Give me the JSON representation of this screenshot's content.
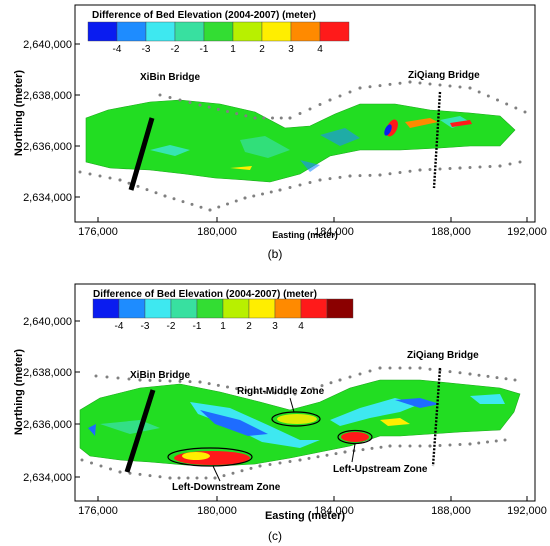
{
  "panels": [
    {
      "id": "b",
      "caption": "(b)",
      "legend_title": "Difference of Bed Elevation (2004-2007) (meter)",
      "legend_ticks": [
        "-4",
        "-3",
        "-2",
        "-1",
        "1",
        "2",
        "3",
        "4"
      ],
      "legend_colors": [
        "#0a1cf0",
        "#1e8cff",
        "#3ee8f0",
        "#38e0a0",
        "#33dd33",
        "#b8f000",
        "#ffee00",
        "#ff8a00",
        "#ff1a1a"
      ],
      "xlabel": "Easting (meter)",
      "ylabel": "Northing (meter)",
      "x_ticks": [
        "176,000",
        "180,000",
        "184,000",
        "188,000",
        "192,000"
      ],
      "y_ticks": [
        "2,640,000",
        "2,638,000",
        "2,636,000",
        "2,634,000"
      ],
      "annotations": [
        "XiBin Bridge",
        "ZiQiang Bridge"
      ]
    },
    {
      "id": "c",
      "caption": "(c)",
      "legend_title": "Difference of Bed Elevation (2004-2007) (meter)",
      "legend_ticks": [
        "-4",
        "-3",
        "-2",
        "-1",
        "1",
        "2",
        "3",
        "4"
      ],
      "legend_colors": [
        "#0a1cf0",
        "#1e8cff",
        "#3ee8f0",
        "#38e0a0",
        "#33dd33",
        "#b8f000",
        "#ffee00",
        "#ff8a00",
        "#ff1a1a",
        "#8b0000"
      ],
      "xlabel": "Easting (meter)",
      "ylabel": "Northing (meter)",
      "x_ticks": [
        "176,000",
        "180,000",
        "184,000",
        "188,000",
        "192,000"
      ],
      "y_ticks": [
        "2,640,000",
        "2,638,000",
        "2,636,000",
        "2,634,000"
      ],
      "annotations": [
        "XiBin Bridge",
        "ZiQiang Bridge",
        "Right-Middle Zone",
        "Left-Upstream Zone",
        "Left-Downstream Zone"
      ]
    }
  ],
  "colors": {
    "river_green": "#22dd22",
    "erosion_blue": "#1e6cff",
    "deposition_red": "#e8201a",
    "bank_points": "#808080",
    "bridge": "#000000"
  }
}
